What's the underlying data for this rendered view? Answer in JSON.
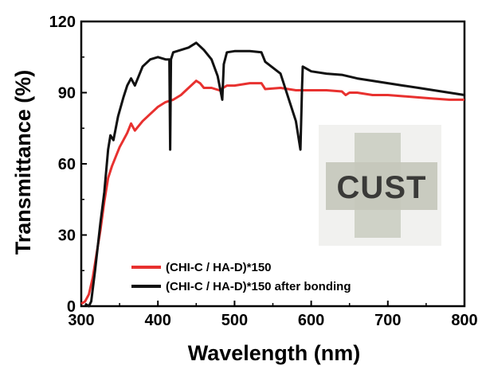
{
  "chart_data": {
    "type": "line",
    "title": "",
    "xlabel": "Wavelength (nm)",
    "ylabel": "Transmittance (%)",
    "xlim": [
      300,
      800
    ],
    "ylim": [
      0,
      120
    ],
    "x_ticks": [
      "300",
      "400",
      "500",
      "600",
      "700",
      "800"
    ],
    "y_ticks": [
      "0",
      "30",
      "60",
      "90",
      "120"
    ],
    "grid": false,
    "legend_position": "bottom-left",
    "series": [
      {
        "name": "(CHI-C / HA-D)*150",
        "color": "#e8312f",
        "points": [
          [
            300,
            1
          ],
          [
            305,
            2
          ],
          [
            310,
            5
          ],
          [
            315,
            12
          ],
          [
            320,
            22
          ],
          [
            325,
            32
          ],
          [
            330,
            44
          ],
          [
            335,
            54
          ],
          [
            340,
            59
          ],
          [
            345,
            63
          ],
          [
            350,
            67
          ],
          [
            355,
            70
          ],
          [
            360,
            73
          ],
          [
            365,
            77
          ],
          [
            370,
            74
          ],
          [
            380,
            78
          ],
          [
            390,
            81
          ],
          [
            400,
            84
          ],
          [
            410,
            86
          ],
          [
            420,
            87
          ],
          [
            430,
            89
          ],
          [
            440,
            92
          ],
          [
            450,
            95
          ],
          [
            455,
            94
          ],
          [
            460,
            92
          ],
          [
            470,
            92
          ],
          [
            480,
            91
          ],
          [
            490,
            93
          ],
          [
            500,
            93
          ],
          [
            520,
            94
          ],
          [
            535,
            94
          ],
          [
            540,
            91.5
          ],
          [
            560,
            92
          ],
          [
            580,
            91
          ],
          [
            600,
            91
          ],
          [
            620,
            91
          ],
          [
            640,
            90.5
          ],
          [
            645,
            89
          ],
          [
            650,
            90
          ],
          [
            660,
            90
          ],
          [
            680,
            89
          ],
          [
            700,
            89
          ],
          [
            720,
            88.5
          ],
          [
            740,
            88
          ],
          [
            760,
            87.5
          ],
          [
            780,
            87
          ],
          [
            800,
            87
          ]
        ]
      },
      {
        "name": "(CHI-C / HA-D)*150 after bonding",
        "color": "#111111",
        "points": [
          [
            305,
            1
          ],
          [
            310,
            0
          ],
          [
            313,
            2
          ],
          [
            318,
            15
          ],
          [
            325,
            35
          ],
          [
            330,
            48
          ],
          [
            335,
            66
          ],
          [
            338,
            72
          ],
          [
            342,
            70
          ],
          [
            348,
            80
          ],
          [
            355,
            88
          ],
          [
            360,
            93
          ],
          [
            365,
            96
          ],
          [
            370,
            93
          ],
          [
            380,
            101
          ],
          [
            390,
            104
          ],
          [
            400,
            105
          ],
          [
            410,
            104
          ],
          [
            415,
            104
          ],
          [
            416,
            66
          ],
          [
            417,
            104
          ],
          [
            420,
            107
          ],
          [
            430,
            108
          ],
          [
            440,
            109
          ],
          [
            450,
            111
          ],
          [
            460,
            108
          ],
          [
            470,
            104
          ],
          [
            478,
            97
          ],
          [
            484,
            87
          ],
          [
            486,
            102
          ],
          [
            490,
            107
          ],
          [
            500,
            107.5
          ],
          [
            520,
            107.5
          ],
          [
            535,
            107
          ],
          [
            540,
            103
          ],
          [
            560,
            98
          ],
          [
            580,
            78
          ],
          [
            586,
            66
          ],
          [
            588,
            92
          ],
          [
            589,
            101
          ],
          [
            600,
            99
          ],
          [
            620,
            98
          ],
          [
            640,
            97.5
          ],
          [
            660,
            96
          ],
          [
            680,
            95
          ],
          [
            700,
            94
          ],
          [
            720,
            93
          ],
          [
            740,
            92
          ],
          [
            760,
            91
          ],
          [
            780,
            90
          ],
          [
            800,
            89
          ]
        ]
      }
    ]
  },
  "legend": {
    "items": [
      {
        "label": "(CHI-C / HA-D)*150",
        "color": "#e8312f"
      },
      {
        "label": "(CHI-C / HA-D)*150 after bonding",
        "color": "#111111"
      }
    ]
  },
  "inset_photo": {
    "text": "CUST",
    "background": "#f1f1ef",
    "film_color": "#c9ccbf"
  }
}
